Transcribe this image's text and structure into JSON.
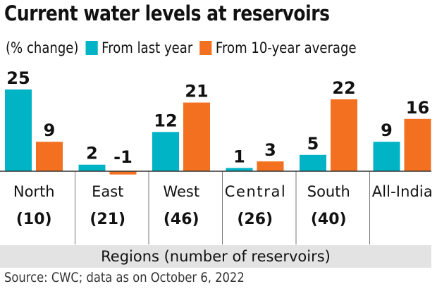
{
  "chart_data": {
    "type": "bar",
    "title": "Current water levels at reservoirs",
    "unit_label": "(% change)",
    "categories": [
      "North",
      "East",
      "West",
      "Central",
      "South",
      "All-India"
    ],
    "category_counts": [
      "(10)",
      "(21)",
      "(46)",
      "(26)",
      "(40)",
      ""
    ],
    "series": [
      {
        "name": "From last year",
        "color": "#00b4c5",
        "values": [
          25,
          2,
          12,
          1,
          5,
          9
        ]
      },
      {
        "name": "From 10-year average",
        "color": "#f37021",
        "values": [
          9,
          -1,
          21,
          3,
          22,
          16
        ]
      }
    ],
    "xlabel": "Regions (number of reservoirs)",
    "ylabel": "",
    "ylim": [
      -1,
      27
    ],
    "grid": false,
    "legend": "top"
  },
  "source": "Source: CWC; data as on October 6, 2022"
}
